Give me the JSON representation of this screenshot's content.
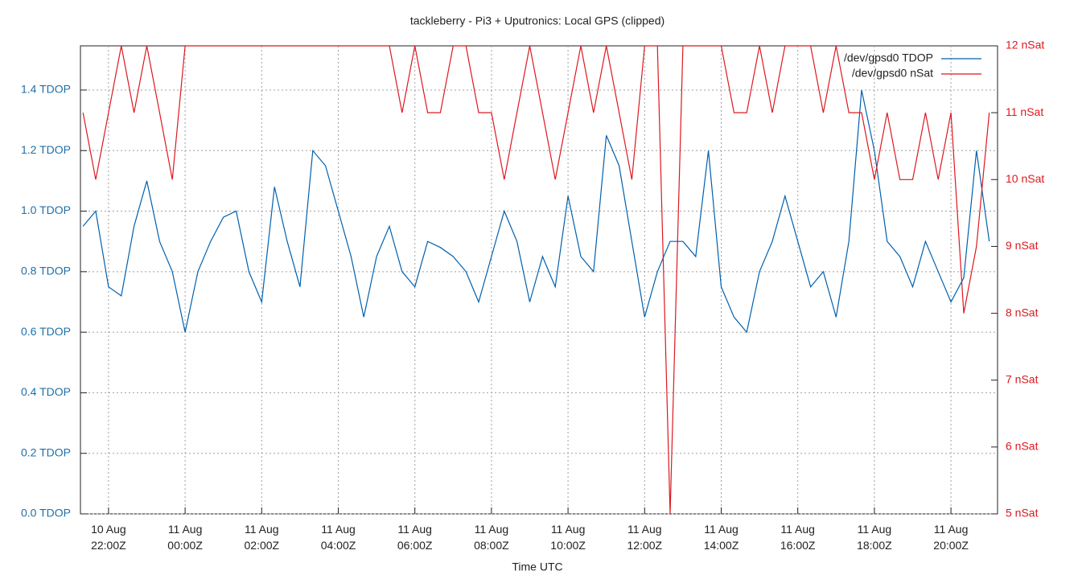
{
  "chart_data": {
    "type": "line",
    "title": "tackleberry - Pi3 + Uputronics: Local GPS (clipped)",
    "xlabel": "Time UTC",
    "x": [
      "10 Aug 21:20",
      "10 Aug 21:40",
      "10 Aug 22:00",
      "10 Aug 22:20",
      "10 Aug 22:40",
      "10 Aug 23:00",
      "10 Aug 23:20",
      "10 Aug 23:40",
      "11 Aug 00:00",
      "11 Aug 00:20",
      "11 Aug 00:40",
      "11 Aug 01:00",
      "11 Aug 01:20",
      "11 Aug 01:40",
      "11 Aug 02:00",
      "11 Aug 02:20",
      "11 Aug 02:40",
      "11 Aug 03:00",
      "11 Aug 03:20",
      "11 Aug 03:40",
      "11 Aug 04:00",
      "11 Aug 04:20",
      "11 Aug 04:40",
      "11 Aug 05:00",
      "11 Aug 05:20",
      "11 Aug 05:40",
      "11 Aug 06:00",
      "11 Aug 06:20",
      "11 Aug 06:40",
      "11 Aug 07:00",
      "11 Aug 07:20",
      "11 Aug 07:40",
      "11 Aug 08:00",
      "11 Aug 08:20",
      "11 Aug 08:40",
      "11 Aug 09:00",
      "11 Aug 09:20",
      "11 Aug 09:40",
      "11 Aug 10:00",
      "11 Aug 10:20",
      "11 Aug 10:40",
      "11 Aug 11:00",
      "11 Aug 11:20",
      "11 Aug 11:40",
      "11 Aug 12:00",
      "11 Aug 12:20",
      "11 Aug 12:40",
      "11 Aug 13:00",
      "11 Aug 13:20",
      "11 Aug 13:40",
      "11 Aug 14:00",
      "11 Aug 14:20",
      "11 Aug 14:40",
      "11 Aug 15:00",
      "11 Aug 15:20",
      "11 Aug 15:40",
      "11 Aug 16:00",
      "11 Aug 16:20",
      "11 Aug 16:40",
      "11 Aug 17:00",
      "11 Aug 17:20",
      "11 Aug 17:40",
      "11 Aug 18:00",
      "11 Aug 18:20",
      "11 Aug 18:40",
      "11 Aug 19:00",
      "11 Aug 19:20",
      "11 Aug 19:40",
      "11 Aug 20:00",
      "11 Aug 20:20",
      "11 Aug 20:40",
      "11 Aug 21:00"
    ],
    "series": [
      {
        "name": "/dev/gpsd0 TDOP",
        "color": "#0060ad",
        "values": [
          0.95,
          1.0,
          0.75,
          0.72,
          0.95,
          1.1,
          0.9,
          0.8,
          0.6,
          0.8,
          0.9,
          0.98,
          1.0,
          0.8,
          0.7,
          1.08,
          0.9,
          0.75,
          1.2,
          1.15,
          1.0,
          0.85,
          0.65,
          0.85,
          0.95,
          0.8,
          0.75,
          0.9,
          0.88,
          0.85,
          0.8,
          0.7,
          0.85,
          1.0,
          0.9,
          0.7,
          0.85,
          0.75,
          1.05,
          0.85,
          0.8,
          1.25,
          1.15,
          0.9,
          0.65,
          0.8,
          0.9,
          0.9,
          0.85,
          1.2,
          0.75,
          0.65,
          0.6,
          0.8,
          0.9,
          1.05,
          0.9,
          0.75,
          0.8,
          0.65,
          0.9,
          1.4,
          1.2,
          0.9,
          0.85,
          0.75,
          0.9,
          0.8,
          0.7,
          0.78,
          1.2,
          0.9
        ]
      },
      {
        "name": "/dev/gpsd0 nSat",
        "color": "#dd181f",
        "axis": "y2",
        "values": [
          11,
          10,
          11,
          12,
          11,
          12,
          11,
          10,
          12,
          12,
          12,
          12,
          12,
          12,
          12,
          12,
          12,
          12,
          12,
          12,
          12,
          12,
          12,
          12,
          12,
          11,
          12,
          11,
          11,
          12,
          12,
          11,
          11,
          10,
          11,
          12,
          11,
          10,
          11,
          12,
          11,
          12,
          11,
          10,
          12,
          12,
          5,
          12,
          12,
          12,
          12,
          11,
          11,
          12,
          11,
          12,
          12,
          12,
          11,
          12,
          11,
          11,
          10,
          11,
          10,
          10,
          11,
          10,
          11,
          8,
          9,
          11
        ]
      }
    ],
    "xlim": [
      "10 Aug 21:16",
      "11 Aug 21:13"
    ],
    "xticks": [
      {
        "value": "10 Aug 22:00",
        "label": "10 Aug\n22:00Z"
      },
      {
        "value": "11 Aug 00:00",
        "label": "11 Aug\n00:00Z"
      },
      {
        "value": "11 Aug 02:00",
        "label": "11 Aug\n02:00Z"
      },
      {
        "value": "11 Aug 04:00",
        "label": "11 Aug\n04:00Z"
      },
      {
        "value": "11 Aug 06:00",
        "label": "11 Aug\n06:00Z"
      },
      {
        "value": "11 Aug 08:00",
        "label": "11 Aug\n08:00Z"
      },
      {
        "value": "11 Aug 10:00",
        "label": "11 Aug\n10:00Z"
      },
      {
        "value": "11 Aug 12:00",
        "label": "11 Aug\n12:00Z"
      },
      {
        "value": "11 Aug 14:00",
        "label": "11 Aug\n14:00Z"
      },
      {
        "value": "11 Aug 16:00",
        "label": "11 Aug\n16:00Z"
      },
      {
        "value": "11 Aug 18:00",
        "label": "11 Aug\n18:00Z"
      },
      {
        "value": "11 Aug 20:00",
        "label": "11 Aug\n20:00Z"
      }
    ],
    "ylim": [
      0,
      1.546
    ],
    "yticks": [
      {
        "value": 0,
        "label": "0.0 TDOP"
      },
      {
        "value": 0.2,
        "label": "0.2 TDOP"
      },
      {
        "value": 0.4,
        "label": "0.4 TDOP"
      },
      {
        "value": 0.6,
        "label": "0.6 TDOP"
      },
      {
        "value": 0.8,
        "label": "0.8 TDOP"
      },
      {
        "value": 1.0,
        "label": "1.0 TDOP"
      },
      {
        "value": 1.2,
        "label": "1.2 TDOP"
      },
      {
        "value": 1.4,
        "label": "1.4 TDOP"
      }
    ],
    "y2lim": [
      5,
      12
    ],
    "y2ticks": [
      {
        "value": 5,
        "label": "5 nSat"
      },
      {
        "value": 6,
        "label": "6 nSat"
      },
      {
        "value": 7,
        "label": "7 nSat"
      },
      {
        "value": 8,
        "label": "8 nSat"
      },
      {
        "value": 9,
        "label": "9 nSat"
      },
      {
        "value": 10,
        "label": "10 nSat"
      },
      {
        "value": 11,
        "label": "11 nSat"
      },
      {
        "value": 12,
        "label": "12 nSat"
      }
    ],
    "grid": true,
    "legend": "top-right"
  }
}
